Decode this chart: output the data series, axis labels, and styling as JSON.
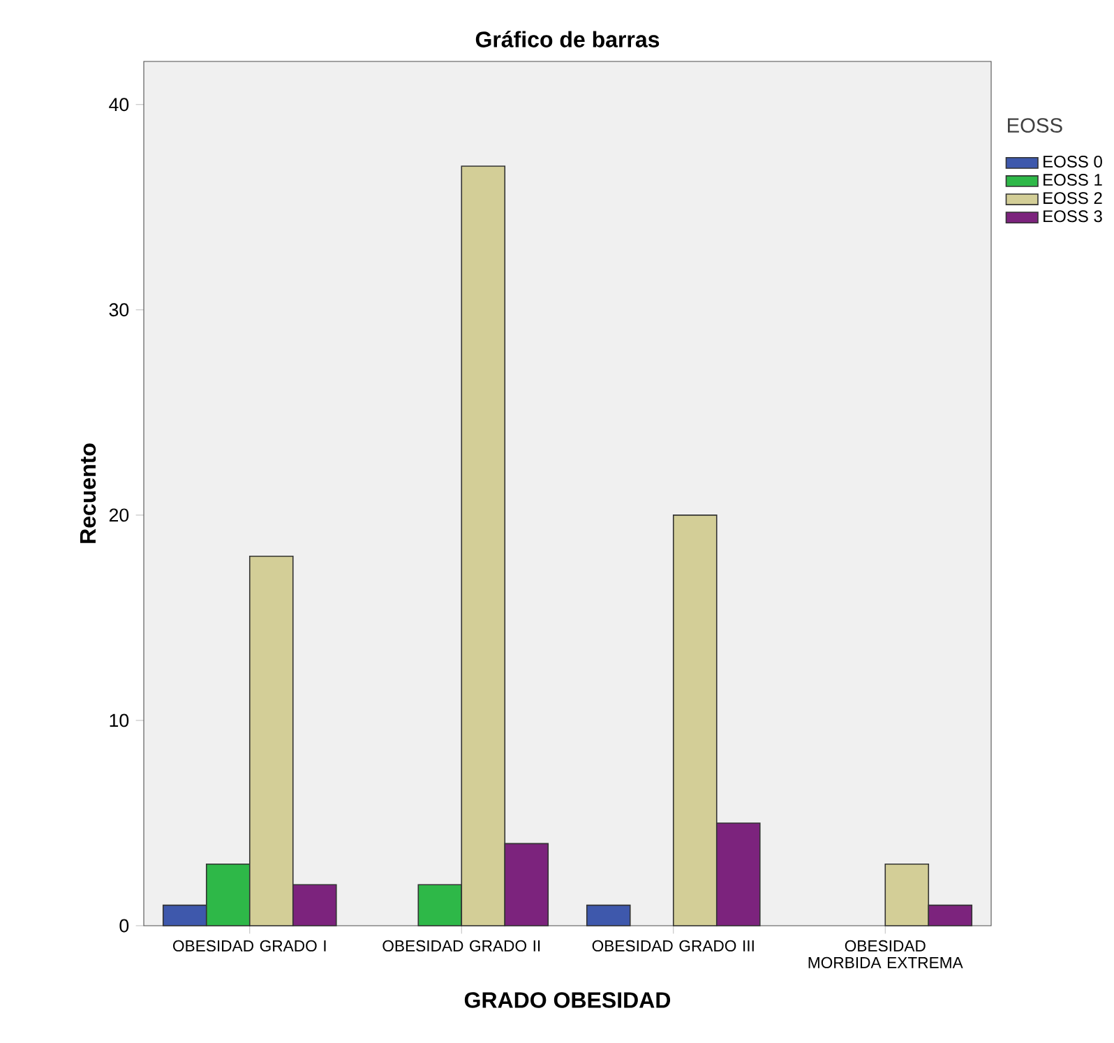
{
  "chart_data": {
    "type": "bar",
    "title": "Gráfico de barras",
    "xlabel": "GRADO OBESIDAD",
    "ylabel": "Recuento",
    "legend_title": "EOSS",
    "categories": [
      "OBESIDAD GRADO I",
      "OBESIDAD GRADO II",
      "OBESIDAD GRADO III",
      "OBESIDAD MORBIDA EXTREMA"
    ],
    "series": [
      {
        "name": "EOSS 0",
        "color": "#3e58ac",
        "values": [
          1,
          null,
          1,
          null
        ]
      },
      {
        "name": "EOSS 1",
        "color": "#2eb848",
        "values": [
          3,
          2,
          null,
          null
        ]
      },
      {
        "name": "EOSS 2",
        "color": "#d3ce97",
        "values": [
          18,
          37,
          20,
          3
        ]
      },
      {
        "name": "EOSS 3",
        "color": "#7c237d",
        "values": [
          2,
          4,
          5,
          1
        ]
      }
    ],
    "ylim": [
      0,
      42.1
    ],
    "yticks": [
      0,
      10,
      20,
      30,
      40
    ],
    "grid": false,
    "legend": "right"
  }
}
